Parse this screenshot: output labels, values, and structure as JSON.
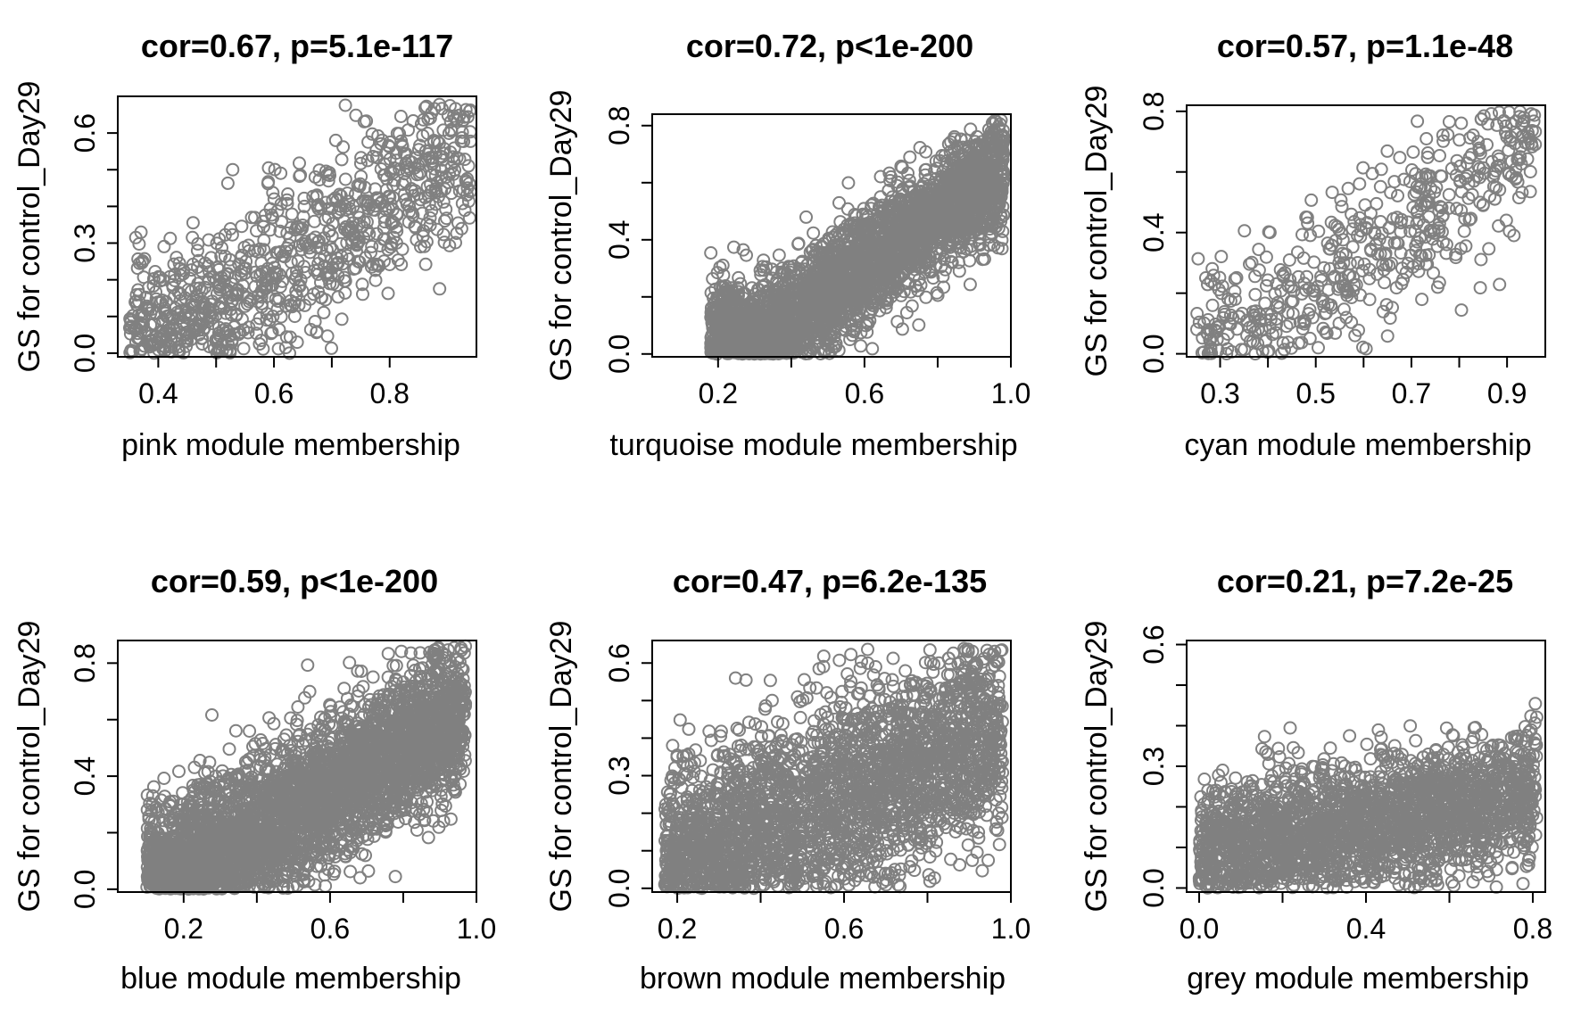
{
  "chart_data": [
    {
      "type": "scatter",
      "title": "cor=0.67, p=5.1e-117",
      "xlabel": "pink module membership",
      "ylabel": "GS for control_Day29",
      "xlim": [
        0.33,
        0.95
      ],
      "ylim": [
        -0.01,
        0.7
      ],
      "xticks": [
        "0.4",
        "0.6",
        "0.8"
      ],
      "yticks": [
        "0.0",
        "0.3",
        "0.6"
      ],
      "yminor": [
        0.1,
        0.2,
        0.4,
        0.5
      ],
      "point_color": "#808080",
      "cloud": {
        "n": 900,
        "x_range": [
          0.35,
          0.94
        ],
        "intercept": -0.38,
        "slope": 1.0,
        "spread": 0.12
      }
    },
    {
      "type": "scatter",
      "title": "cor=0.72, p<1e-200",
      "xlabel": "turquoise module membership",
      "ylabel": "GS for control_Day29",
      "xlim": [
        0.02,
        1.0
      ],
      "ylim": [
        -0.01,
        0.84
      ],
      "xticks": [
        "0.2",
        "0.6",
        "1.0"
      ],
      "yticks": [
        "0.0",
        "0.4",
        "0.8"
      ],
      "yminor": [
        0.2,
        0.6
      ],
      "point_color": "#808080",
      "cloud": {
        "n": 3200,
        "x_range": [
          0.18,
          0.98
        ],
        "intercept": -0.24,
        "slope": 0.9,
        "spread": 0.1
      }
    },
    {
      "type": "scatter",
      "title": "cor=0.57, p=1.1e-48",
      "xlabel": "cyan module membership",
      "ylabel": "GS for control_Day29",
      "xlim": [
        0.23,
        0.98
      ],
      "ylim": [
        -0.01,
        0.82
      ],
      "xticks": [
        "0.3",
        "0.5",
        "0.7",
        "0.9"
      ],
      "yticks": [
        "0.0",
        "0.4",
        "0.8"
      ],
      "yminor": [
        0.2,
        0.6
      ],
      "point_color": "#808080",
      "cloud": {
        "n": 520,
        "x_range": [
          0.25,
          0.96
        ],
        "intercept": -0.3,
        "slope": 1.05,
        "spread": 0.14
      }
    },
    {
      "type": "scatter",
      "title": "cor=0.59, p<1e-200",
      "xlabel": "blue module membership",
      "ylabel": "GS for control_Day29",
      "xlim": [
        0.02,
        1.0
      ],
      "ylim": [
        -0.01,
        0.88
      ],
      "xticks": [
        "0.2",
        "0.6",
        "1.0"
      ],
      "yticks": [
        "0.0",
        "0.4",
        "0.8"
      ],
      "yminor": [
        0.2,
        0.6
      ],
      "point_color": "#808080",
      "cloud": {
        "n": 3600,
        "x_range": [
          0.1,
          0.97
        ],
        "intercept": -0.08,
        "slope": 0.72,
        "spread": 0.13
      }
    },
    {
      "type": "scatter",
      "title": "cor=0.47, p=6.2e-135",
      "xlabel": "brown module membership",
      "ylabel": "GS for control_Day29",
      "xlim": [
        0.14,
        1.0
      ],
      "ylim": [
        -0.01,
        0.66
      ],
      "xticks": [
        "0.2",
        "0.6",
        "1.0"
      ],
      "yticks": [
        "0.0",
        "0.3",
        "0.6"
      ],
      "yminor": [
        0.1,
        0.2,
        0.4,
        0.5
      ],
      "point_color": "#808080",
      "cloud": {
        "n": 2600,
        "x_range": [
          0.17,
          0.98
        ],
        "intercept": 0.0,
        "slope": 0.42,
        "spread": 0.13
      }
    },
    {
      "type": "scatter",
      "title": "cor=0.21, p=7.2e-25",
      "xlabel": "grey module membership",
      "ylabel": "GS for control_Day29",
      "xlim": [
        -0.03,
        0.83
      ],
      "ylim": [
        -0.01,
        0.61
      ],
      "xticks": [
        "0.0",
        "0.4",
        "0.8"
      ],
      "yticks": [
        "0.0",
        "0.3",
        "0.6"
      ],
      "yminor": [
        0.1,
        0.2,
        0.4,
        0.5
      ],
      "point_color": "#808080",
      "cloud": {
        "n": 2300,
        "x_range": [
          0.0,
          0.81
        ],
        "intercept": 0.09,
        "slope": 0.18,
        "spread": 0.08
      }
    }
  ]
}
